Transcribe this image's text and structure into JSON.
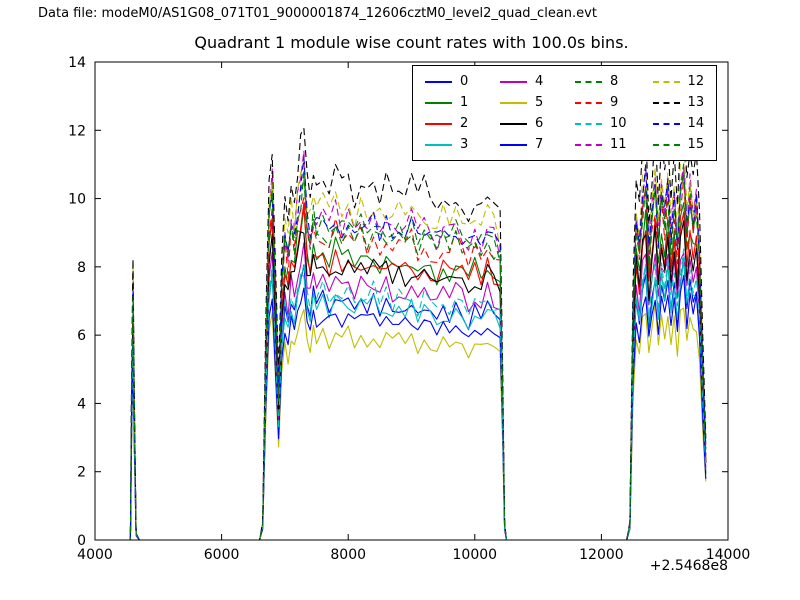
{
  "header": {
    "data_file_label": "Data file: modeM0/AS1G08_071T01_9000001874_12606cztM0_level2_quad_clean.evt"
  },
  "chart_data": {
    "type": "line",
    "title": "Quadrant 1 module wise count rates with 100.0s bins.",
    "xlabel": "",
    "ylabel": "",
    "xlim": [
      4000,
      14000
    ],
    "ylim": [
      0,
      14
    ],
    "x_ticks": [
      4000,
      6000,
      8000,
      10000,
      12000,
      14000
    ],
    "y_ticks": [
      0,
      2,
      4,
      6,
      8,
      10,
      12,
      14
    ],
    "x_offset_label": "+2.5468e8",
    "grid": false,
    "bin_seconds": 100.0,
    "legend_position": "upper right inside",
    "noise_amp": 0.04,
    "profile_points": [
      [
        4500,
        0
      ],
      [
        4560,
        0
      ],
      [
        4580,
        0.5
      ],
      [
        4600,
        0.8
      ],
      [
        4620,
        0.45
      ],
      [
        4650,
        0.02
      ],
      [
        4700,
        0
      ],
      [
        5200,
        0
      ],
      [
        5800,
        0
      ],
      [
        6400,
        0
      ],
      [
        6600,
        0
      ],
      [
        6650,
        0.05
      ],
      [
        6700,
        0.62
      ],
      [
        6750,
        1.02
      ],
      [
        6800,
        1.1
      ],
      [
        6850,
        0.78
      ],
      [
        6900,
        0.45
      ],
      [
        6950,
        0.78
      ],
      [
        7000,
        0.95
      ],
      [
        7050,
        0.88
      ],
      [
        7100,
        1.0
      ],
      [
        7150,
        0.94
      ],
      [
        7200,
        1.04
      ],
      [
        7250,
        1.08
      ],
      [
        7300,
        1.15
      ],
      [
        7350,
        0.99
      ],
      [
        7400,
        0.94
      ],
      [
        7450,
        1.02
      ],
      [
        7500,
        0.97
      ],
      [
        7600,
        1.0
      ],
      [
        7700,
        0.96
      ],
      [
        7800,
        1.01
      ],
      [
        7900,
        0.97
      ],
      [
        8000,
        1.0
      ],
      [
        8100,
        0.95
      ],
      [
        8200,
        0.99
      ],
      [
        8300,
        0.96
      ],
      [
        8400,
        1.0
      ],
      [
        8500,
        0.95
      ],
      [
        8600,
        0.98
      ],
      [
        8700,
        0.94
      ],
      [
        8800,
        0.97
      ],
      [
        8900,
        0.95
      ],
      [
        9000,
        0.98
      ],
      [
        9100,
        0.93
      ],
      [
        9200,
        0.97
      ],
      [
        9300,
        0.94
      ],
      [
        9400,
        0.92
      ],
      [
        9500,
        0.96
      ],
      [
        9600,
        0.93
      ],
      [
        9700,
        0.97
      ],
      [
        9800,
        0.94
      ],
      [
        9900,
        0.91
      ],
      [
        10000,
        0.95
      ],
      [
        10100,
        0.92
      ],
      [
        10200,
        0.97
      ],
      [
        10300,
        0.93
      ],
      [
        10400,
        0.9
      ],
      [
        10440,
        0.45
      ],
      [
        10470,
        0.05
      ],
      [
        10500,
        0
      ],
      [
        11000,
        0
      ],
      [
        11600,
        0
      ],
      [
        12200,
        0
      ],
      [
        12400,
        0
      ],
      [
        12450,
        0.05
      ],
      [
        12500,
        0.7
      ],
      [
        12550,
        1.0
      ],
      [
        12600,
        0.9
      ],
      [
        12650,
        1.05
      ],
      [
        12700,
        1.12
      ],
      [
        12750,
        0.88
      ],
      [
        12800,
        1.02
      ],
      [
        12850,
        1.1
      ],
      [
        12900,
        0.94
      ],
      [
        12950,
        1.08
      ],
      [
        13000,
        1.0
      ],
      [
        13050,
        1.12
      ],
      [
        13100,
        0.95
      ],
      [
        13150,
        1.05
      ],
      [
        13200,
        0.92
      ],
      [
        13250,
        1.1
      ],
      [
        13300,
        1.15
      ],
      [
        13350,
        0.97
      ],
      [
        13400,
        1.08
      ],
      [
        13450,
        1.0
      ],
      [
        13500,
        1.05
      ],
      [
        13550,
        0.88
      ],
      [
        13600,
        0.55
      ],
      [
        13650,
        0.28
      ]
    ],
    "series": [
      {
        "name": "0",
        "color": "#0000ff",
        "dash": "solid",
        "plateau_level": 7.05
      },
      {
        "name": "1",
        "color": "#007f00",
        "dash": "solid",
        "plateau_level": 8.45
      },
      {
        "name": "2",
        "color": "#ff0000",
        "dash": "solid",
        "plateau_level": 8.3
      },
      {
        "name": "3",
        "color": "#00bfbf",
        "dash": "solid",
        "plateau_level": 6.95
      },
      {
        "name": "4",
        "color": "#bf00bf",
        "dash": "solid",
        "plateau_level": 7.6
      },
      {
        "name": "5",
        "color": "#bfbf00",
        "dash": "solid",
        "plateau_level": 6.05
      },
      {
        "name": "6",
        "color": "#000000",
        "dash": "solid",
        "plateau_level": 8.1
      },
      {
        "name": "7",
        "color": "#0000ff",
        "dash": "solid",
        "plateau_level": 6.6
      },
      {
        "name": "8",
        "color": "#007f00",
        "dash": "dashed",
        "plateau_level": 9.35
      },
      {
        "name": "9",
        "color": "#ff0000",
        "dash": "dashed",
        "plateau_level": 9.0
      },
      {
        "name": "10",
        "color": "#00bfbf",
        "dash": "dashed",
        "plateau_level": 7.3
      },
      {
        "name": "11",
        "color": "#bf00bf",
        "dash": "dashed",
        "plateau_level": 9.55
      },
      {
        "name": "12",
        "color": "#bfbf00",
        "dash": "dashed",
        "plateau_level": 9.9
      },
      {
        "name": "13",
        "color": "#000000",
        "dash": "dashed",
        "plateau_level": 10.6
      },
      {
        "name": "14",
        "color": "#0000ff",
        "dash": "dashed",
        "plateau_level": 9.45
      },
      {
        "name": "15",
        "color": "#007f00",
        "dash": "dashed",
        "plateau_level": 9.15
      }
    ]
  }
}
